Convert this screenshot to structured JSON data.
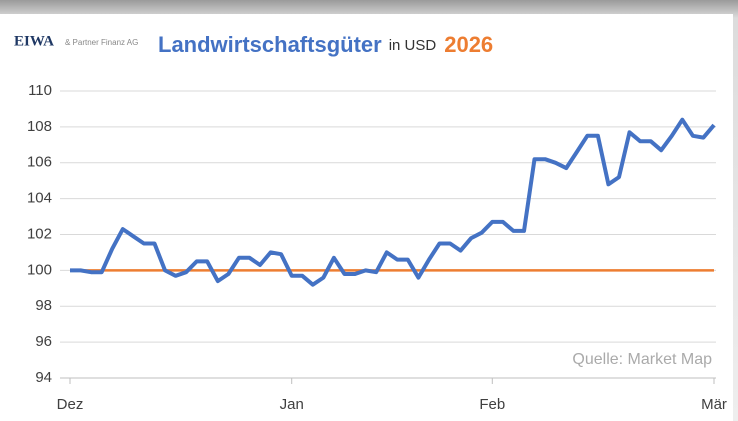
{
  "chart_data": {
    "type": "line",
    "logo": "EIWA",
    "logo_subtitle": "& Partner Finanz AG",
    "title": "Landwirtschaftsgüter",
    "title_unit": "in USD",
    "title_year": "2026",
    "annotation": "Quelle: Market Map",
    "categories": [
      "Dez",
      null,
      null,
      null,
      null,
      null,
      null,
      null,
      null,
      null,
      null,
      null,
      null,
      null,
      null,
      null,
      null,
      null,
      null,
      null,
      null,
      "Jan",
      null,
      null,
      null,
      null,
      null,
      null,
      null,
      null,
      null,
      null,
      null,
      null,
      null,
      null,
      null,
      null,
      null,
      null,
      "Feb",
      null,
      null,
      null,
      null,
      null,
      null,
      null,
      null,
      null,
      null,
      null,
      null,
      null,
      null,
      null,
      null,
      null,
      null,
      null,
      null,
      "Mär"
    ],
    "series": [
      {
        "color": "#4472c4",
        "values": [
          100.0,
          100.0,
          99.9,
          99.9,
          101.2,
          102.3,
          101.9,
          101.5,
          101.5,
          100.0,
          99.7,
          99.9,
          100.5,
          100.5,
          99.4,
          99.8,
          100.7,
          100.7,
          100.3,
          101.0,
          100.9,
          99.7,
          99.7,
          99.2,
          99.6,
          100.7,
          99.8,
          99.8,
          100.0,
          99.9,
          101.0,
          100.6,
          100.6,
          99.6,
          100.6,
          101.5,
          101.5,
          101.1,
          101.8,
          102.1,
          102.7,
          102.7,
          102.2,
          102.2,
          106.2,
          106.2,
          106.0,
          105.7,
          106.6,
          107.5,
          107.5,
          104.8,
          105.2,
          107.7,
          107.2,
          107.2,
          106.7,
          107.5,
          108.4,
          107.5,
          107.4,
          108.1
        ]
      }
    ],
    "reference_value": 100,
    "reference_color": "#ed7d31",
    "ylim": [
      94,
      110
    ],
    "yticks": [
      94,
      96,
      98,
      100,
      102,
      104,
      106,
      108,
      110
    ],
    "grid": true
  }
}
